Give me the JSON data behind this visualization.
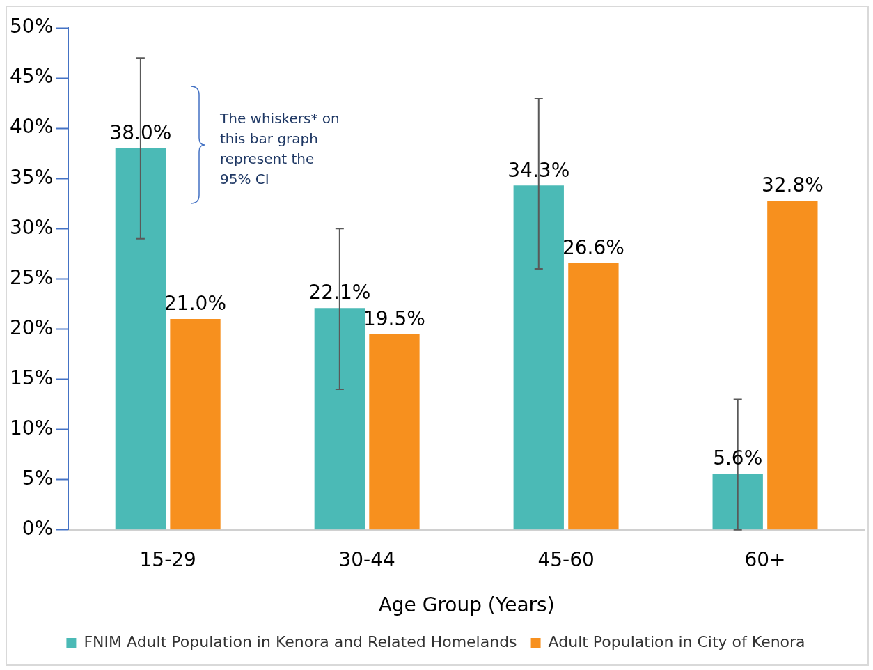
{
  "chart_data": {
    "type": "bar",
    "xlabel": "Age Group (Years)",
    "categories": [
      "15-29",
      "30-44",
      "45-60",
      "60+"
    ],
    "series": [
      {
        "name": "FNIM Adult Population in Kenora and Related Homelands",
        "color": "#4bbab6",
        "values": [
          38.0,
          22.1,
          34.3,
          5.6
        ],
        "value_labels": [
          "38.0%",
          "22.1%",
          "34.3%",
          "5.6%"
        ],
        "errors": [
          [
            29,
            47
          ],
          [
            14,
            30
          ],
          [
            26,
            43
          ],
          [
            0,
            13
          ]
        ]
      },
      {
        "name": "Adult Population in City of Kenora",
        "color": "#f7901e",
        "values": [
          21.0,
          19.5,
          26.6,
          32.8
        ],
        "value_labels": [
          "21.0%",
          "19.5%",
          "26.6%",
          "32.8%"
        ]
      }
    ],
    "ylim": [
      0,
      50
    ],
    "yticks": [
      {
        "value": 0,
        "label": "0%"
      },
      {
        "value": 5,
        "label": "5%"
      },
      {
        "value": 10,
        "label": "10%"
      },
      {
        "value": 15,
        "label": "15%"
      },
      {
        "value": 20,
        "label": "20%"
      },
      {
        "value": 25,
        "label": "25%"
      },
      {
        "value": 30,
        "label": "30%"
      },
      {
        "value": 35,
        "label": "35%"
      },
      {
        "value": 40,
        "label": "40%"
      },
      {
        "value": 45,
        "label": "45%"
      },
      {
        "value": 50,
        "label": "50%"
      }
    ],
    "grid": false,
    "legend": "bottom",
    "annotations": [
      "The whiskers* on this bar graph represent the 95% CI"
    ]
  }
}
